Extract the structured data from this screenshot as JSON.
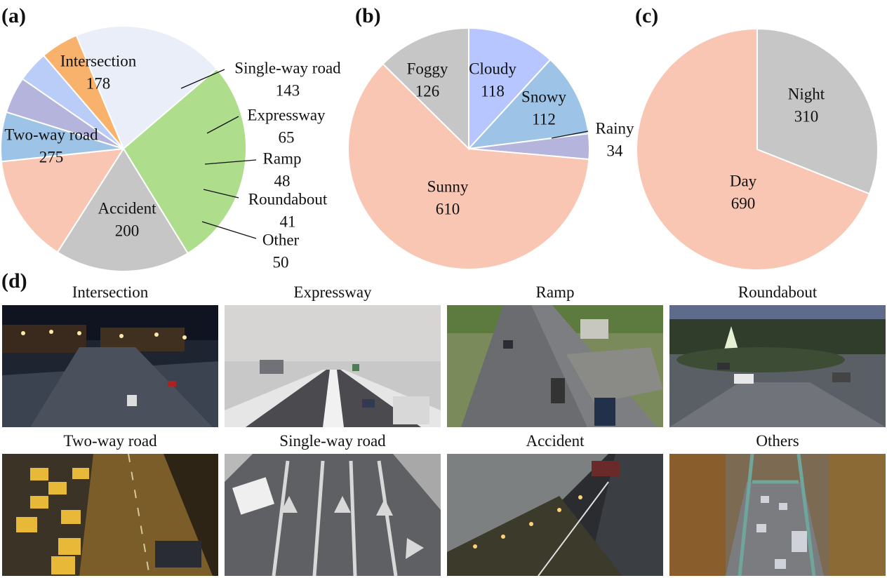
{
  "panels": {
    "a": "(a)",
    "b": "(b)",
    "c": "(c)",
    "d": "(d)"
  },
  "chart_data": [
    {
      "type": "pie",
      "panel": "(a)",
      "categories": [
        "Single-way road",
        "Expressway",
        "Ramp",
        "Roundabout",
        "Other",
        "Accident",
        "Two-way road",
        "Intersection"
      ],
      "values": [
        143,
        65,
        48,
        41,
        50,
        200,
        275,
        178
      ],
      "colors": [
        "#f8c6b3",
        "#9dc3e6",
        "#b4b4dc",
        "#b9cdf8",
        "#f9b26b",
        "#e9eef8",
        "#aedd8c",
        "#c6c6c6"
      ],
      "start": "top, clockwise from Intersection boundary"
    },
    {
      "type": "pie",
      "panel": "(b)",
      "categories": [
        "Cloudy",
        "Snowy",
        "Rainy",
        "Sunny",
        "Foggy"
      ],
      "values": [
        118,
        112,
        34,
        610,
        126
      ],
      "colors": [
        "#b8c6ff",
        "#9dc3e6",
        "#b4b4dc",
        "#f8c6b3",
        "#c6c6c6"
      ]
    },
    {
      "type": "pie",
      "panel": "(c)",
      "categories": [
        "Night",
        "Day"
      ],
      "values": [
        310,
        690
      ],
      "colors": [
        "#c6c6c6",
        "#f8c6b3"
      ]
    }
  ],
  "thumbnails": [
    {
      "caption": "Intersection",
      "scene": "night"
    },
    {
      "caption": "Expressway",
      "scene": "snow"
    },
    {
      "caption": "Ramp",
      "scene": "day"
    },
    {
      "caption": "Roundabout",
      "scene": "dusk"
    },
    {
      "caption": "Two-way road",
      "scene": "night"
    },
    {
      "caption": "Single-way road",
      "scene": "snow"
    },
    {
      "caption": "Accident",
      "scene": "tunnel"
    },
    {
      "caption": "Others",
      "scene": "bridge"
    }
  ]
}
